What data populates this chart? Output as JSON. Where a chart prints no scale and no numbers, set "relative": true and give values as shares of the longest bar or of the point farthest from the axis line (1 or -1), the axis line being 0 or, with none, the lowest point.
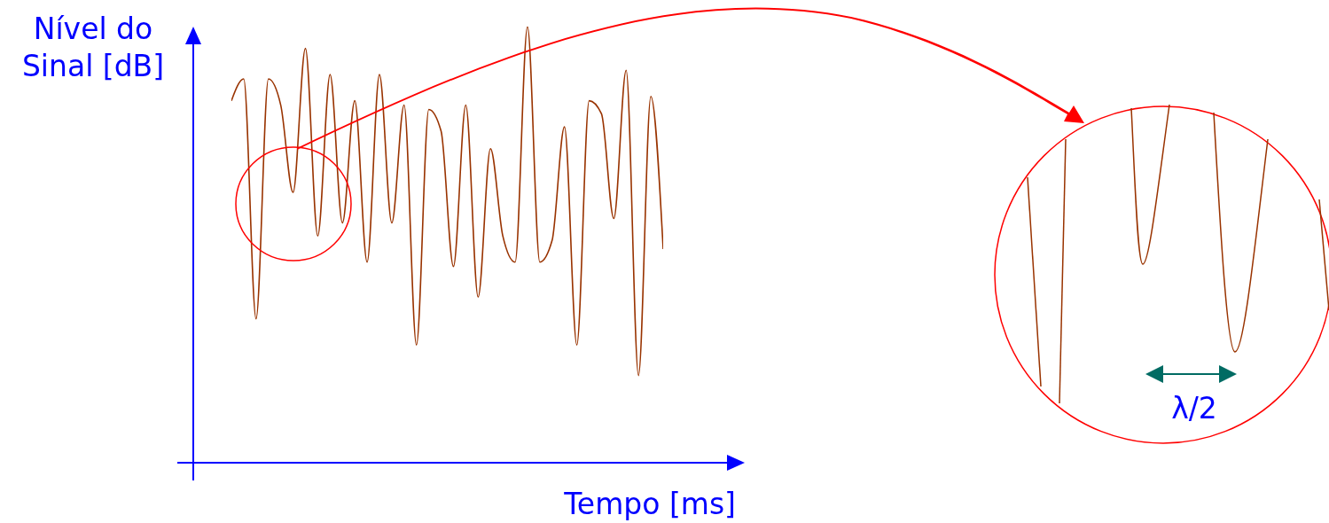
{
  "chart_data": {
    "type": "line",
    "relative": true,
    "xlabel": "Tempo [ms]",
    "ylabel": "Nível do\nSinal [dB]",
    "annotations": [
      "λ/2"
    ],
    "legend": false,
    "grid": false,
    "marker": "none",
    "line_style": "solid",
    "categories": [
      null,
      null,
      null,
      null,
      null,
      null,
      null,
      null,
      null,
      null,
      null,
      null,
      null,
      null,
      null,
      null,
      null,
      null,
      null,
      null,
      null,
      null,
      null,
      null,
      null,
      null,
      null,
      null,
      null,
      null,
      null,
      null,
      null,
      null,
      null,
      null
    ],
    "series": [
      {
        "color": "#993300",
        "values": [
          0.83,
          0.88,
          0.33,
          0.88,
          0.82,
          0.62,
          0.95,
          0.52,
          0.89,
          0.55,
          0.83,
          0.46,
          0.89,
          0.55,
          0.82,
          0.27,
          0.81,
          0.76,
          0.45,
          0.82,
          0.38,
          0.72,
          0.52,
          0.46,
          1,
          0.46,
          0.51,
          0.77,
          0.27,
          0.83,
          0.8,
          0.56,
          0.9,
          0.2,
          0.84,
          0.49
        ]
      }
    ]
  }
}
